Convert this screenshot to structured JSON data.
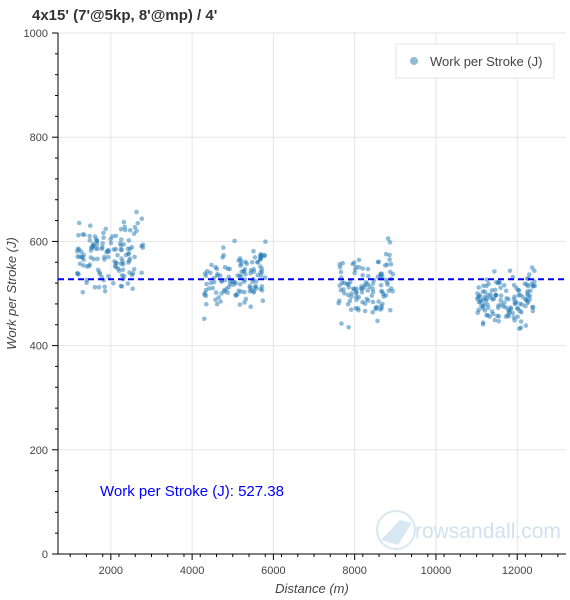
{
  "chart_data": {
    "type": "scatter",
    "title": "4x15' (7'@5kp, 8'@mp) / 4'",
    "xlabel": "Distance (m)",
    "ylabel": "Work per Stroke (J)",
    "xlim": [
      700,
      13200
    ],
    "ylim": [
      0,
      1000
    ],
    "x_ticks": [
      2000,
      4000,
      6000,
      8000,
      10000,
      12000
    ],
    "y_ticks": [
      0,
      200,
      400,
      600,
      800,
      1000
    ],
    "grid": true,
    "legend": {
      "position": "top-right",
      "entries": [
        "Work per Stroke (J)"
      ]
    },
    "series": [
      {
        "name": "Work per Stroke (J)",
        "color": "#1f77b4",
        "clusters": [
          {
            "x_range": [
              1150,
              2800
            ],
            "base_y": 570,
            "spread": 60,
            "count": 130
          },
          {
            "x_range": [
              4300,
              5850
            ],
            "base_y": 525,
            "spread": 55,
            "count": 120
          },
          {
            "x_range": [
              7600,
              8950
            ],
            "base_y": 510,
            "spread": 55,
            "count": 110
          },
          {
            "x_range": [
              11000,
              12450
            ],
            "base_y": 485,
            "spread": 50,
            "count": 130
          }
        ]
      }
    ],
    "average": {
      "label": "Work per Stroke (J): 527.38",
      "value": 527.38,
      "color": "#0000ff",
      "style": "dashed"
    },
    "watermark": "rowsandall.com"
  }
}
